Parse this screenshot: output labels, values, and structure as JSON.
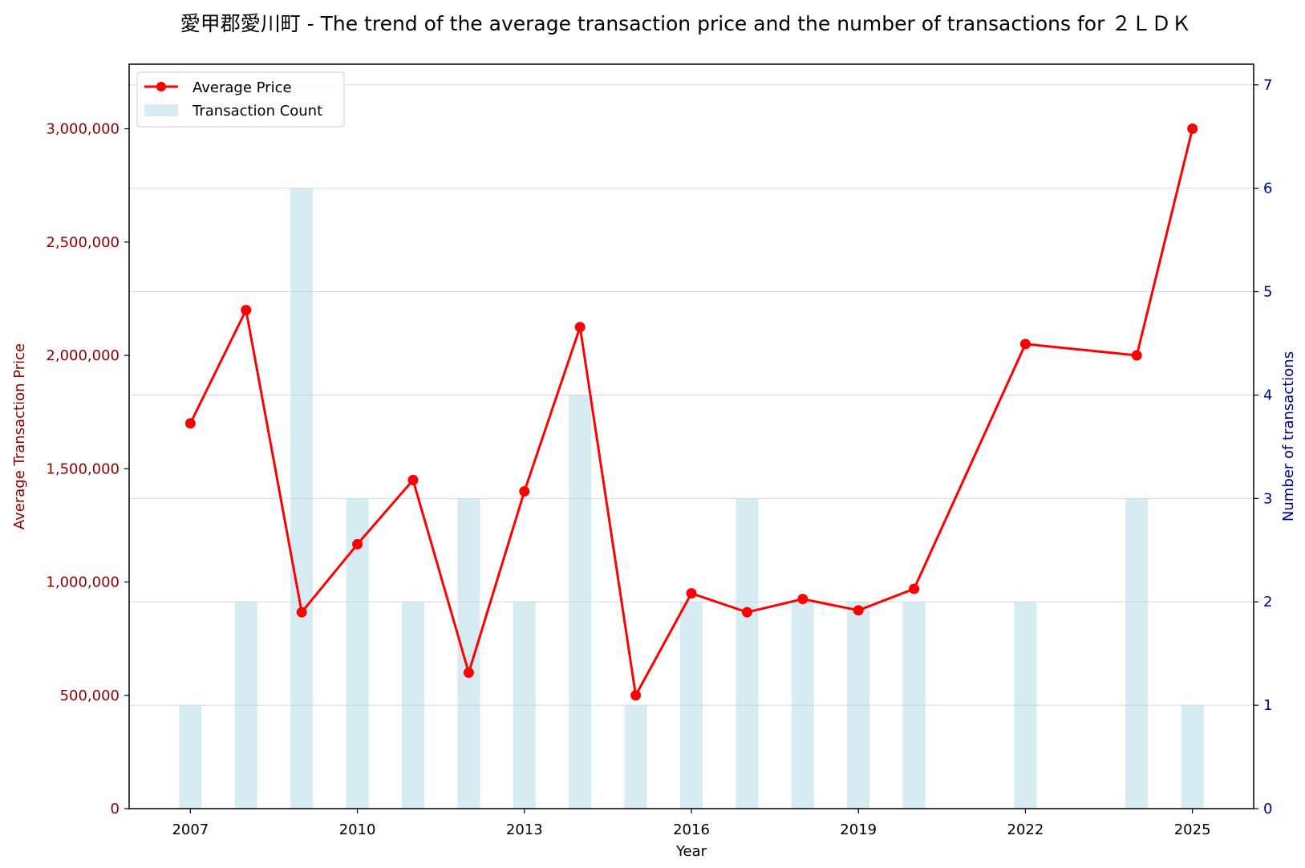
{
  "chart_data": {
    "type": "bar+line",
    "title": "愛甲郡愛川町 - The trend of the average transaction price and the number of transactions for ２ＬＤＫ",
    "xlabel": "Year",
    "ylabel_left": "Average Transaction Price",
    "ylabel_right": "Number of transactions",
    "xlim": [
      2005.9,
      2026.1
    ],
    "ylim_left": [
      0,
      3285000
    ],
    "ylim_right": [
      0,
      7.2
    ],
    "x_ticks": [
      2007,
      2010,
      2013,
      2016,
      2019,
      2022,
      2025
    ],
    "y_left_ticks": [
      0,
      500000,
      1000000,
      1500000,
      2000000,
      2500000,
      3000000
    ],
    "y_left_tick_labels": [
      "0",
      "500,000",
      "1,000,000",
      "1,500,000",
      "2,000,000",
      "2,500,000",
      "3,000,000"
    ],
    "y_right_ticks": [
      0,
      1,
      2,
      3,
      4,
      5,
      6,
      7
    ],
    "y_right_tick_labels": [
      "0",
      "1",
      "2",
      "3",
      "4",
      "5",
      "6",
      "7"
    ],
    "grid": "horizontal, right axis",
    "legend_position": "top-left",
    "colors": {
      "line": "#ff0000",
      "bar": "#add8e6",
      "left_axis": "#8b0000",
      "right_axis": "#00008b"
    },
    "series": [
      {
        "name": "Average Price",
        "type": "line",
        "axis": "left",
        "x": [
          2007,
          2008,
          2009,
          2010,
          2011,
          2012,
          2013,
          2014,
          2015,
          2016,
          2017,
          2018,
          2019,
          2020,
          2022,
          2024,
          2025
        ],
        "values": [
          1700000,
          2200000,
          866667,
          1166667,
          1450000,
          600000,
          1400000,
          2125000,
          500000,
          950000,
          866667,
          925000,
          875000,
          970000,
          2050000,
          2000000,
          3000000
        ]
      },
      {
        "name": "Transaction Count",
        "type": "bar",
        "axis": "right",
        "x": [
          2007,
          2008,
          2009,
          2010,
          2011,
          2012,
          2013,
          2014,
          2015,
          2016,
          2017,
          2018,
          2019,
          2020,
          2022,
          2024,
          2025
        ],
        "values": [
          1,
          2,
          6,
          3,
          2,
          3,
          2,
          4,
          1,
          2,
          3,
          2,
          2,
          2,
          2,
          3,
          1
        ]
      }
    ]
  }
}
